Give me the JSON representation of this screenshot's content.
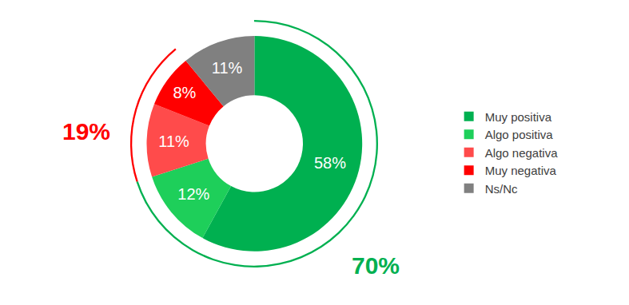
{
  "chart_data": {
    "type": "donut",
    "categories": [
      "Muy positiva",
      "Algo positiva",
      "Algo negativa",
      "Muy negativa",
      "Ns/Nc"
    ],
    "values": [
      58,
      12,
      11,
      8,
      11
    ],
    "value_labels": [
      "58%",
      "12%",
      "11%",
      "8%",
      "11%"
    ],
    "colors": [
      "#00b050",
      "#1ecf5a",
      "#ff4b4b",
      "#ff0000",
      "#808080"
    ],
    "data_labels": true,
    "legend": "right",
    "totals": [
      {
        "value": 70,
        "label": "70%",
        "color": "#00b050",
        "categories": [
          "Muy positiva",
          "Algo positiva"
        ]
      },
      {
        "value": 19,
        "label": "19%",
        "color": "#ff0000",
        "categories": [
          "Algo negativa",
          "Muy negativa"
        ]
      }
    ]
  }
}
